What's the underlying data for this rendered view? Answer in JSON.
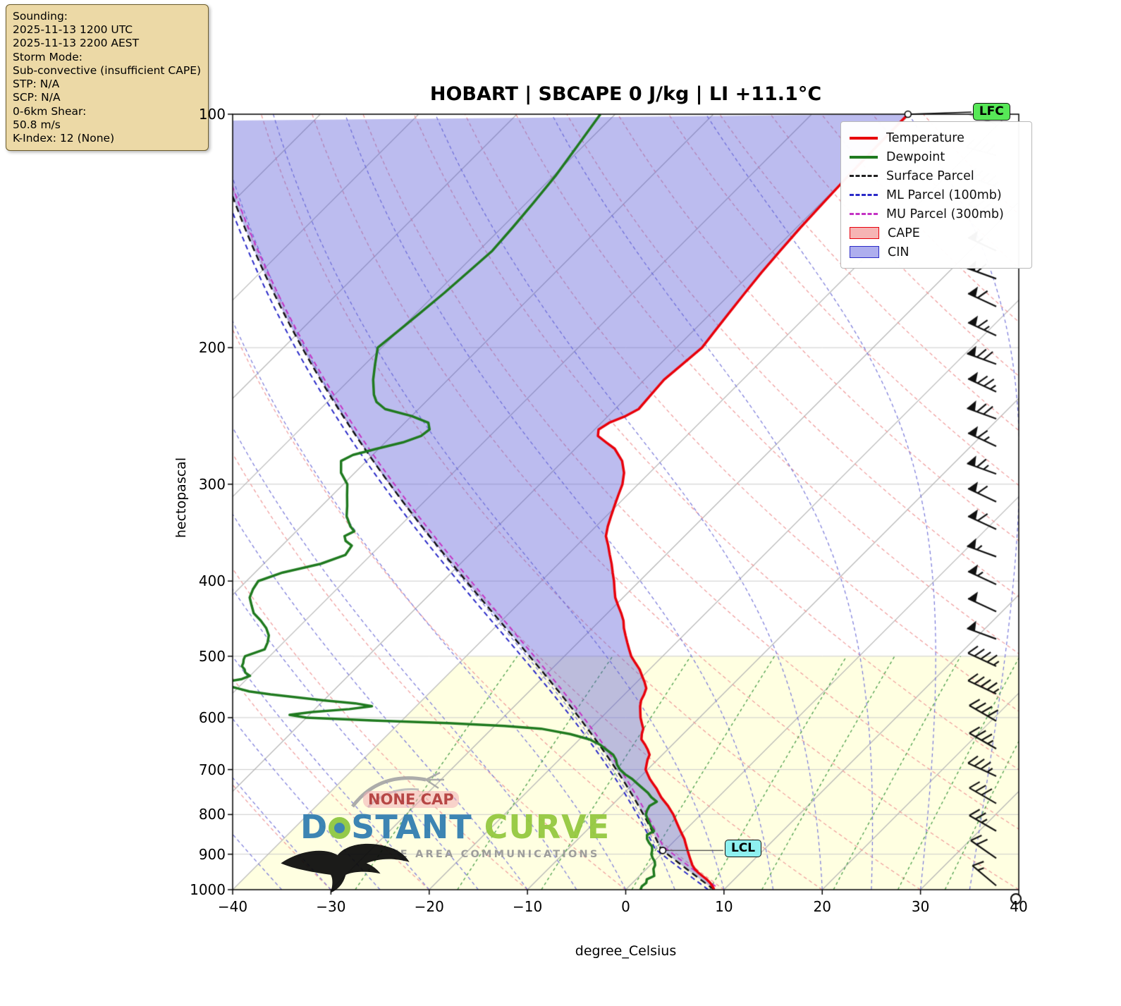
{
  "title": "HOBART | SBCAPE 0 J/kg | LI +11.1°C",
  "info_box": {
    "lines": [
      "Sounding:",
      "2025-11-13 1200 UTC",
      "2025-11-13 2200 AEST",
      "Storm Mode:",
      "Sub-convective (insufficient CAPE)",
      "STP: N/A",
      "SCP: N/A",
      "0-6km Shear:",
      "50.8 m/s",
      "K-Index: 12 (None)"
    ]
  },
  "axes": {
    "x_label": "degree_Celsius",
    "y_label": "hectopascal",
    "x_tick_values": [
      -40,
      -30,
      -20,
      -10,
      0,
      10,
      20,
      30,
      40
    ],
    "x_tick_labels": [
      "−40",
      "−30",
      "−20",
      "−10",
      "0",
      "10",
      "20",
      "30",
      "40"
    ],
    "y_tick_values": [
      100,
      200,
      300,
      400,
      500,
      600,
      700,
      800,
      900,
      1000
    ],
    "y_tick_labels": [
      "100",
      "200",
      "300",
      "400",
      "500",
      "600",
      "700",
      "800",
      "900",
      "1000"
    ]
  },
  "legend": [
    {
      "label": "Temperature",
      "type": "line",
      "color": "#e8000b"
    },
    {
      "label": "Dewpoint",
      "type": "line",
      "color": "#1f7a1f"
    },
    {
      "label": "Surface Parcel",
      "type": "dash",
      "color": "#222222"
    },
    {
      "label": "ML Parcel (100mb)",
      "type": "dash",
      "color": "#2a2ac8"
    },
    {
      "label": "MU Parcel (300mb)",
      "type": "dash",
      "color": "#c433c4"
    },
    {
      "label": "CAPE",
      "type": "fill",
      "color": "#f6b4b4",
      "edge": "#e8000b"
    },
    {
      "label": "CIN",
      "type": "fill",
      "color": "#aeaeee",
      "edge": "#2a2ac8"
    }
  ],
  "badges": {
    "lfc": "LFC",
    "lcl": "LCL"
  },
  "watermark": {
    "tag": "NONE CAP",
    "brand_d": "D",
    "brand_stant": "STANT",
    "brand_curve": "CURVE",
    "subtitle": "REMOTE AREA COMMUNICATIONS"
  },
  "chart_data": {
    "type": "skewt_log_p",
    "station": "HOBART",
    "sbcape_j_kg": 0,
    "lifted_index_c": 11.1,
    "p_range": [
      100,
      1000
    ],
    "t_range": [
      -40,
      40
    ],
    "skew": 1.0,
    "grid": true,
    "isotherm_step_c": 10,
    "dry_adiabats_theta_c": {
      "start": -40,
      "end": 160,
      "step": 10
    },
    "moist_adiabats_t1000_c": {
      "start": -60,
      "end": 45,
      "step": 5
    },
    "mixing_ratio_g_kg": [
      0.4,
      1,
      2,
      4,
      7,
      10,
      16,
      24,
      32
    ],
    "shaded_zone": {
      "top_p": 500,
      "left_isotherm_c": -40,
      "color": "rgba(255,255,205,0.6)"
    },
    "colors": {
      "temperature": "#e8000b",
      "dewpoint": "#1f7a1f",
      "surface_parcel": "#111111",
      "ml_parcel": "#2a2ac8",
      "mu_parcel": "#c433c4",
      "cin_fill": "rgba(88,88,216,0.40)",
      "isotherm": "#b3b3b3",
      "grid": "#cbcbcb",
      "dry_adiabat": "#ef9999",
      "moist_adiabat": "#7777d9",
      "mixing_ratio": "#4a9e4a",
      "barb": "#111111",
      "barb_gray": "#b9b9b9"
    },
    "surface_parcel": {
      "p0": 1000,
      "t0": 9.0,
      "td0": 1.5
    },
    "ml_parcel": {
      "p0": 1000,
      "t0": 8.4,
      "td0": 0.8
    },
    "mu_parcel": {
      "p0": 990,
      "t0": 8.8,
      "td0": 1.4
    },
    "temperature_profile": [
      [
        1000,
        9.0
      ],
      [
        990,
        8.5
      ],
      [
        980,
        7.9
      ],
      [
        970,
        7.2
      ],
      [
        960,
        6.4
      ],
      [
        950,
        5.6
      ],
      [
        940,
        4.9
      ],
      [
        930,
        4.3
      ],
      [
        920,
        3.8
      ],
      [
        910,
        3.3
      ],
      [
        900,
        2.8
      ],
      [
        890,
        2.3
      ],
      [
        880,
        1.8
      ],
      [
        870,
        1.3
      ],
      [
        860,
        0.8
      ],
      [
        850,
        0.2
      ],
      [
        840,
        -0.4
      ],
      [
        830,
        -1.0
      ],
      [
        820,
        -1.6
      ],
      [
        810,
        -2.2
      ],
      [
        800,
        -2.8
      ],
      [
        790,
        -3.5
      ],
      [
        780,
        -4.2
      ],
      [
        770,
        -5.0
      ],
      [
        760,
        -5.8
      ],
      [
        750,
        -6.5
      ],
      [
        740,
        -7.2
      ],
      [
        730,
        -8.0
      ],
      [
        720,
        -8.8
      ],
      [
        710,
        -9.5
      ],
      [
        700,
        -10.2
      ],
      [
        690,
        -10.6
      ],
      [
        680,
        -11.0
      ],
      [
        670,
        -11.3
      ],
      [
        660,
        -12.0
      ],
      [
        650,
        -12.8
      ],
      [
        640,
        -13.7
      ],
      [
        630,
        -14.2
      ],
      [
        620,
        -14.6
      ],
      [
        610,
        -15.3
      ],
      [
        600,
        -16.0
      ],
      [
        590,
        -16.6
      ],
      [
        580,
        -17.2
      ],
      [
        570,
        -17.7
      ],
      [
        560,
        -18.0
      ],
      [
        550,
        -18.4
      ],
      [
        540,
        -19.2
      ],
      [
        530,
        -20.1
      ],
      [
        520,
        -21.0
      ],
      [
        510,
        -22.1
      ],
      [
        500,
        -23.2
      ],
      [
        490,
        -24.1
      ],
      [
        480,
        -25.0
      ],
      [
        470,
        -25.9
      ],
      [
        460,
        -26.8
      ],
      [
        450,
        -27.6
      ],
      [
        440,
        -28.6
      ],
      [
        430,
        -29.7
      ],
      [
        420,
        -30.8
      ],
      [
        410,
        -31.7
      ],
      [
        400,
        -32.6
      ],
      [
        390,
        -33.6
      ],
      [
        380,
        -34.6
      ],
      [
        370,
        -35.7
      ],
      [
        360,
        -36.8
      ],
      [
        350,
        -38.0
      ],
      [
        340,
        -38.8
      ],
      [
        330,
        -39.5
      ],
      [
        320,
        -40.2
      ],
      [
        310,
        -40.9
      ],
      [
        300,
        -41.6
      ],
      [
        290,
        -42.6
      ],
      [
        280,
        -44.0
      ],
      [
        270,
        -46.0
      ],
      [
        265,
        -47.5
      ],
      [
        260,
        -49.0
      ],
      [
        255,
        -49.6
      ],
      [
        250,
        -49.2
      ],
      [
        245,
        -48.2
      ],
      [
        240,
        -47.6
      ],
      [
        230,
        -47.8
      ],
      [
        220,
        -48.0
      ],
      [
        210,
        -47.7
      ],
      [
        200,
        -47.4
      ],
      [
        190,
        -47.8
      ],
      [
        180,
        -48.2
      ],
      [
        170,
        -48.6
      ],
      [
        160,
        -49.0
      ],
      [
        150,
        -49.3
      ],
      [
        140,
        -49.6
      ],
      [
        130,
        -49.8
      ],
      [
        120,
        -50.0
      ],
      [
        110,
        -50.1
      ],
      [
        100,
        -50.2
      ]
    ],
    "dewpoint_profile": [
      [
        1000,
        1.5
      ],
      [
        990,
        1.3
      ],
      [
        980,
        1.4
      ],
      [
        970,
        1.1
      ],
      [
        960,
        1.5
      ],
      [
        950,
        1.1
      ],
      [
        940,
        0.7
      ],
      [
        930,
        0.5
      ],
      [
        920,
        0.1
      ],
      [
        910,
        -0.5
      ],
      [
        900,
        -1.0
      ],
      [
        890,
        -1.3
      ],
      [
        880,
        -1.7
      ],
      [
        870,
        -2.4
      ],
      [
        860,
        -3.0
      ],
      [
        850,
        -3.4
      ],
      [
        840,
        -3.1
      ],
      [
        830,
        -3.8
      ],
      [
        820,
        -4.4
      ],
      [
        810,
        -5.0
      ],
      [
        800,
        -5.6
      ],
      [
        790,
        -5.9
      ],
      [
        780,
        -6.1
      ],
      [
        770,
        -5.8
      ],
      [
        760,
        -6.8
      ],
      [
        750,
        -7.6
      ],
      [
        740,
        -8.6
      ],
      [
        730,
        -9.6
      ],
      [
        720,
        -10.6
      ],
      [
        710,
        -11.8
      ],
      [
        700,
        -12.8
      ],
      [
        690,
        -13.6
      ],
      [
        680,
        -14.2
      ],
      [
        670,
        -15.0
      ],
      [
        660,
        -16.2
      ],
      [
        650,
        -17.4
      ],
      [
        640,
        -19.0
      ],
      [
        630,
        -21.5
      ],
      [
        620,
        -25.0
      ],
      [
        615,
        -29.0
      ],
      [
        610,
        -35.0
      ],
      [
        605,
        -43.0
      ],
      [
        600,
        -50.0
      ],
      [
        595,
        -52.0
      ],
      [
        590,
        -50.0
      ],
      [
        585,
        -46.5
      ],
      [
        580,
        -44.5
      ],
      [
        575,
        -46.5
      ],
      [
        570,
        -50.0
      ],
      [
        565,
        -53.0
      ],
      [
        560,
        -56.0
      ],
      [
        555,
        -58.5
      ],
      [
        550,
        -60.0
      ],
      [
        545,
        -61.5
      ],
      [
        540,
        -62.0
      ],
      [
        535,
        -60.5
      ],
      [
        530,
        -60.0
      ],
      [
        525,
        -60.8
      ],
      [
        520,
        -61.2
      ],
      [
        515,
        -61.8
      ],
      [
        510,
        -62.0
      ],
      [
        505,
        -62.3
      ],
      [
        500,
        -62.5
      ],
      [
        490,
        -61.2
      ],
      [
        480,
        -61.6
      ],
      [
        470,
        -62.2
      ],
      [
        460,
        -63.2
      ],
      [
        450,
        -64.5
      ],
      [
        440,
        -66.0
      ],
      [
        430,
        -67.0
      ],
      [
        420,
        -68.0
      ],
      [
        410,
        -68.5
      ],
      [
        400,
        -68.8
      ],
      [
        390,
        -67.2
      ],
      [
        380,
        -64.2
      ],
      [
        370,
        -62.6
      ],
      [
        360,
        -62.9
      ],
      [
        355,
        -64.0
      ],
      [
        350,
        -64.6
      ],
      [
        345,
        -64.1
      ],
      [
        340,
        -65.0
      ],
      [
        330,
        -66.4
      ],
      [
        320,
        -67.4
      ],
      [
        310,
        -68.5
      ],
      [
        300,
        -69.6
      ],
      [
        290,
        -71.4
      ],
      [
        280,
        -72.6
      ],
      [
        275,
        -72.0
      ],
      [
        270,
        -70.2
      ],
      [
        265,
        -68.2
      ],
      [
        260,
        -67.0
      ],
      [
        255,
        -66.8
      ],
      [
        250,
        -67.6
      ],
      [
        245,
        -70.0
      ],
      [
        240,
        -73.4
      ],
      [
        235,
        -75.0
      ],
      [
        230,
        -76.0
      ],
      [
        220,
        -77.6
      ],
      [
        210,
        -79.0
      ],
      [
        200,
        -80.4
      ],
      [
        190,
        -80.0
      ],
      [
        180,
        -79.6
      ],
      [
        170,
        -79.2
      ],
      [
        160,
        -78.9
      ],
      [
        150,
        -78.6
      ],
      [
        140,
        -78.9
      ],
      [
        130,
        -79.3
      ],
      [
        120,
        -79.8
      ],
      [
        110,
        -80.6
      ],
      [
        100,
        -81.5
      ]
    ],
    "winds": [
      [
        103,
        35,
        290,
        "gray"
      ],
      [
        113,
        40,
        285,
        "gray"
      ],
      [
        124,
        45,
        290,
        "gray"
      ],
      [
        136,
        45,
        295,
        "gray"
      ],
      [
        150,
        55,
        295,
        "black"
      ],
      [
        163,
        60,
        290,
        "black"
      ],
      [
        177,
        60,
        295,
        "black"
      ],
      [
        193,
        65,
        295,
        "black"
      ],
      [
        210,
        70,
        290,
        "black"
      ],
      [
        228,
        75,
        295,
        "black"
      ],
      [
        247,
        70,
        290,
        "black"
      ],
      [
        268,
        65,
        295,
        "black"
      ],
      [
        291,
        65,
        290,
        "black"
      ],
      [
        316,
        60,
        295,
        "black"
      ],
      [
        343,
        60,
        295,
        "black"
      ],
      [
        372,
        55,
        290,
        "black"
      ],
      [
        404,
        55,
        295,
        "black"
      ],
      [
        438,
        50,
        295,
        "black"
      ],
      [
        475,
        50,
        290,
        "black"
      ],
      [
        515,
        45,
        295,
        "black"
      ],
      [
        559,
        45,
        295,
        "black"
      ],
      [
        606,
        40,
        300,
        "black"
      ],
      [
        658,
        35,
        300,
        "black"
      ],
      [
        714,
        35,
        295,
        "black"
      ],
      [
        774,
        30,
        300,
        "black"
      ],
      [
        840,
        25,
        300,
        "black"
      ],
      [
        911,
        20,
        305,
        "black"
      ],
      [
        988,
        15,
        310,
        "black"
      ]
    ]
  }
}
